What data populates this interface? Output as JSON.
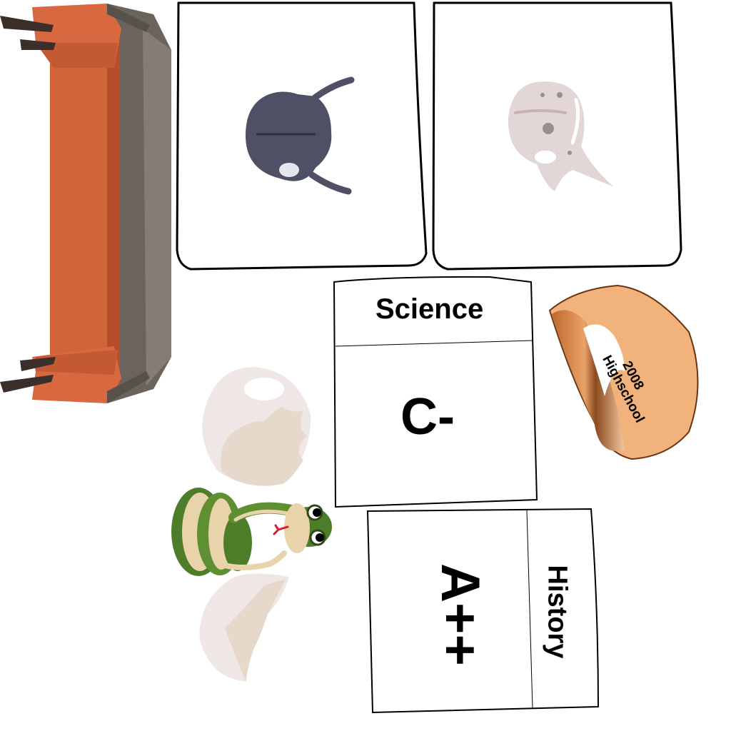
{
  "items": {
    "couch": {
      "icon": "couch-icon"
    },
    "mask_dark": {
      "icon": "mask-icon"
    },
    "mask_light": {
      "icon": "mask-icon"
    },
    "science_card": {
      "subject": "Science",
      "grade": "C-"
    },
    "history_card": {
      "subject": "History",
      "grade": "A++"
    },
    "ring": {
      "text_line1": "Highschool",
      "text_line2": "2008",
      "icon": "ring-icon"
    },
    "snake": {
      "icon": "snake-icon"
    },
    "egg_shell_top": {
      "icon": "egg-shell-icon"
    },
    "egg_shell_bottom": {
      "icon": "egg-shell-icon"
    }
  },
  "colors": {
    "couch_orange": "#d2643a",
    "couch_gray": "#6b645c",
    "mask_dark": "#4f4f66",
    "mask_light": "#e2d6d6",
    "ring_orange": "#f2b27c",
    "snake_green": "#4e7d2a",
    "eggshell": "#efe7e5"
  }
}
